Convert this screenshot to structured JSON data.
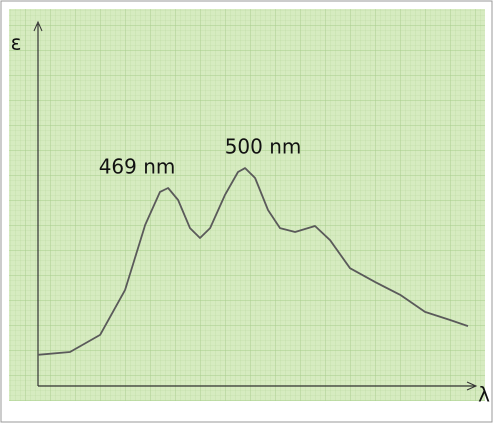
{
  "chart_data": {
    "type": "line",
    "x_label": "λ",
    "y_label": "ε",
    "annotations": [
      {
        "text": "469 nm",
        "x": 469
      },
      {
        "text": "500 nm",
        "x": 500
      }
    ],
    "x": [
      418.5,
      431.2,
      443.2,
      453.1,
      461.1,
      467.0,
      470.2,
      474.2,
      478.9,
      482.9,
      486.9,
      492.8,
      498.0,
      500.8,
      504.8,
      509.9,
      514.7,
      520.7,
      528.6,
      534.6,
      542.5,
      552.5,
      562.4,
      572.3,
      582.3,
      589.4
    ],
    "series": [
      {
        "color": "#5a5a5a",
        "values": [
          8.5,
          9.3,
          14.1,
          26.8,
          45.1,
          54.4,
          55.5,
          52.1,
          44.2,
          41.4,
          44.2,
          53.5,
          60.0,
          61.1,
          58.3,
          49.3,
          44.2,
          43.1,
          44.8,
          40.8,
          32.9,
          29.0,
          25.4,
          20.6,
          18.3,
          16.6
        ]
      }
    ],
    "xlim": [
      418.5,
      589.4
    ],
    "ylim": [
      0,
      100
    ],
    "grid": true,
    "background": "#d6ebc0"
  }
}
